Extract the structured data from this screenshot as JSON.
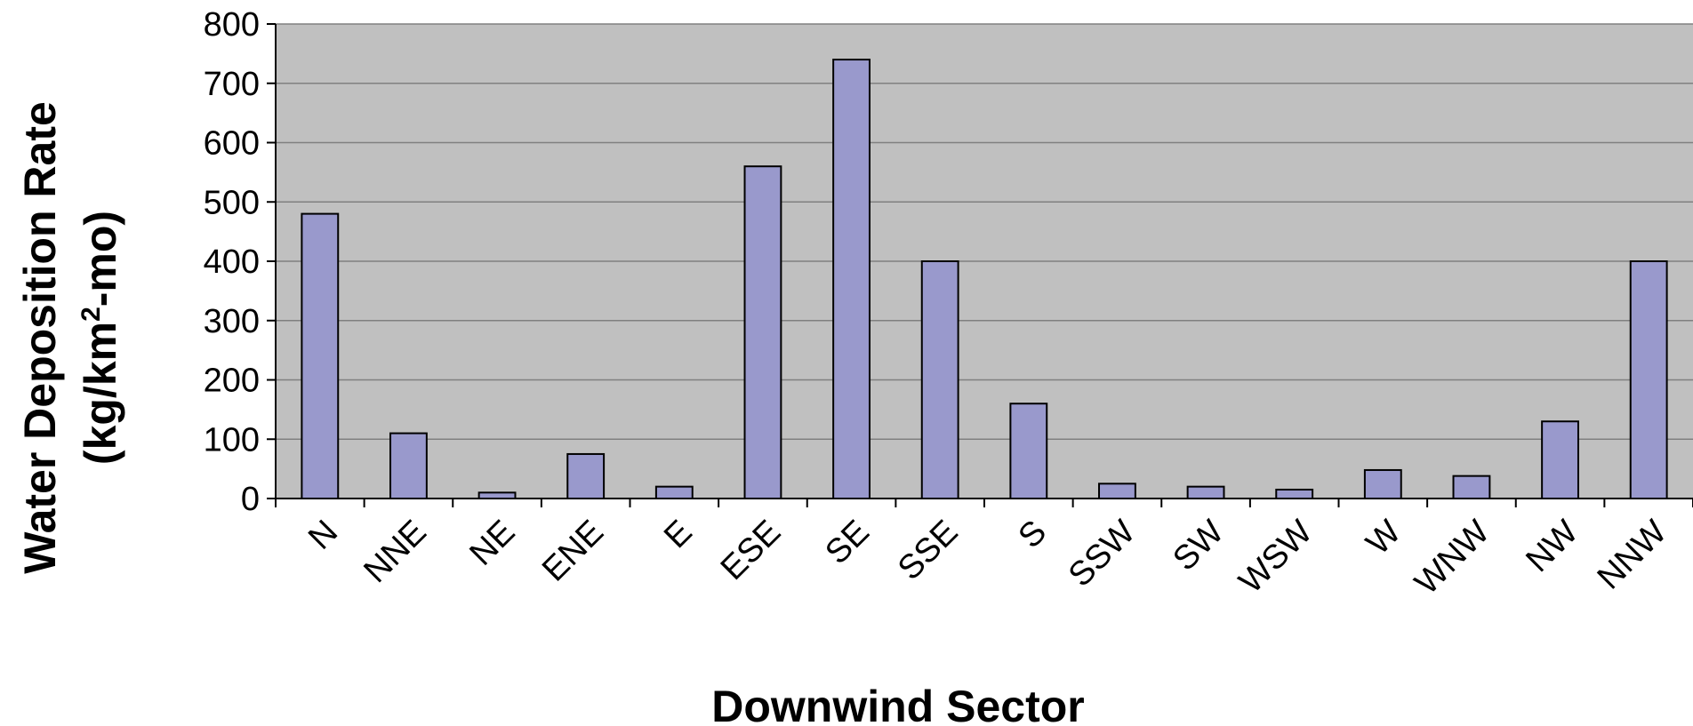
{
  "chart_data": {
    "type": "bar",
    "title": "",
    "xlabel": "Downwind Sector",
    "ylabel": {
      "line1": "Water Deposition Rate",
      "line2_pre": "(kg/km",
      "line2_sup": "2",
      "line2_post": "-mo)"
    },
    "categories": [
      "N",
      "NNE",
      "NE",
      "ENE",
      "E",
      "ESE",
      "SE",
      "SSE",
      "S",
      "SSW",
      "SW",
      "WSW",
      "W",
      "WNW",
      "NW",
      "NNW"
    ],
    "series": [
      {
        "values": [
          480,
          110,
          10,
          75,
          20,
          560,
          740,
          400,
          160,
          25,
          20,
          15,
          48,
          38,
          130,
          400
        ],
        "color": "#9999cc"
      }
    ],
    "ylim": [
      0,
      800
    ],
    "yticks": [
      "0",
      "100",
      "200",
      "300",
      "400",
      "500",
      "600",
      "700",
      "800"
    ],
    "grid": true,
    "plot_background": "#c0c0c0",
    "legend": "none"
  }
}
